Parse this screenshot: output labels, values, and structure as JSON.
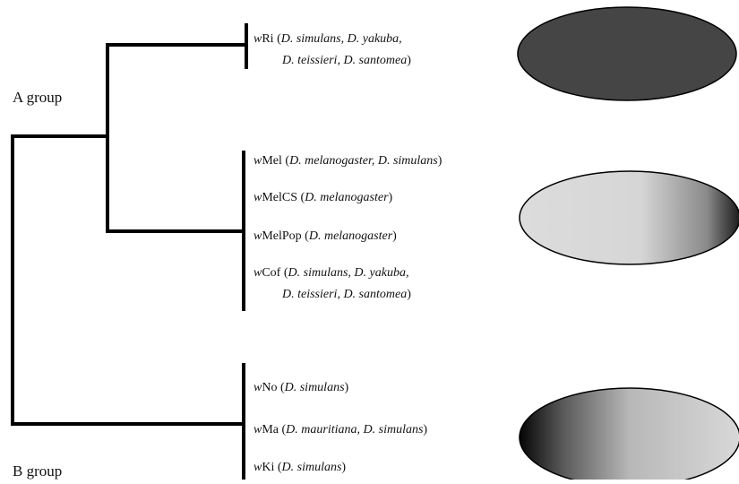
{
  "groups": [
    {
      "label": "A group"
    },
    {
      "label": "B group"
    }
  ],
  "strains": [
    {
      "lines": [
        [
          {
            "text": "w",
            "italic": true
          },
          {
            "text": "Ri ("
          },
          {
            "text": "D. simulans, D. yakuba,",
            "italic": true
          }
        ],
        [
          {
            "text": "D. teissieri, D. santomea",
            "italic": true
          },
          {
            "text": ")"
          }
        ]
      ]
    },
    {
      "lines": [
        [
          {
            "text": "w",
            "italic": true
          },
          {
            "text": "Mel ("
          },
          {
            "text": "D. melanogaster, D. simulans",
            "italic": true
          },
          {
            "text": ")"
          }
        ]
      ]
    },
    {
      "lines": [
        [
          {
            "text": "w",
            "italic": true
          },
          {
            "text": "MelCS ("
          },
          {
            "text": "D. melanogaster",
            "italic": true
          },
          {
            "text": ")"
          }
        ]
      ]
    },
    {
      "lines": [
        [
          {
            "text": "w",
            "italic": true
          },
          {
            "text": "MelPop ("
          },
          {
            "text": "D. melanogaster",
            "italic": true
          },
          {
            "text": ")"
          }
        ]
      ]
    },
    {
      "lines": [
        [
          {
            "text": "w",
            "italic": true
          },
          {
            "text": "Cof ("
          },
          {
            "text": "D. simulans, D. yakuba,",
            "italic": true
          }
        ],
        [
          {
            "text": "D. teissieri, D. santomea",
            "italic": true
          },
          {
            "text": ")"
          }
        ]
      ]
    },
    {
      "lines": [
        [
          {
            "text": "w",
            "italic": true
          },
          {
            "text": "No ("
          },
          {
            "text": "D. simulans",
            "italic": true
          },
          {
            "text": ")"
          }
        ]
      ]
    },
    {
      "lines": [
        [
          {
            "text": "w",
            "italic": true
          },
          {
            "text": "Ma ("
          },
          {
            "text": "D. mauritiana, D. simulans",
            "italic": true
          },
          {
            "text": ")"
          }
        ]
      ]
    },
    {
      "lines": [
        [
          {
            "text": "w",
            "italic": true
          },
          {
            "text": "Ki ("
          },
          {
            "text": "D. simulans",
            "italic": true
          },
          {
            "text": ")"
          }
        ]
      ]
    }
  ]
}
